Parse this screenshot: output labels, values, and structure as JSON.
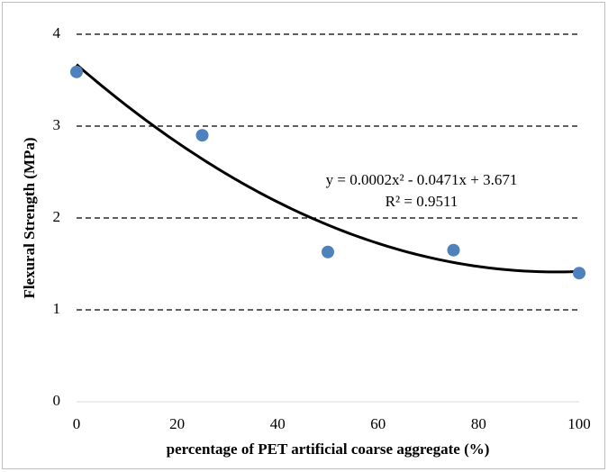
{
  "chart_data": {
    "type": "scatter",
    "x_label": "percentage of PET artificial coarse aggregate (%)",
    "y_label": "Flexural Strength (MPa)",
    "series": [
      {
        "name": "Flexural Strength",
        "color": "#4f81bd",
        "x": [
          0,
          25,
          50,
          75,
          100
        ],
        "values": [
          3.59,
          2.9,
          1.63,
          1.65,
          1.4
        ]
      }
    ],
    "trendline": {
      "type": "polynomial",
      "order": 2,
      "color": "#000000",
      "equation": "y = 0.0002x² - 0.0471x + 3.671",
      "r_squared": "R² = 0.9511"
    },
    "xlim": [
      0,
      100
    ],
    "xticks": [
      0,
      20,
      40,
      60,
      80,
      100
    ],
    "ylim": [
      0,
      4
    ],
    "yticks": [
      0,
      1,
      2,
      3,
      4
    ],
    "grid": true
  }
}
